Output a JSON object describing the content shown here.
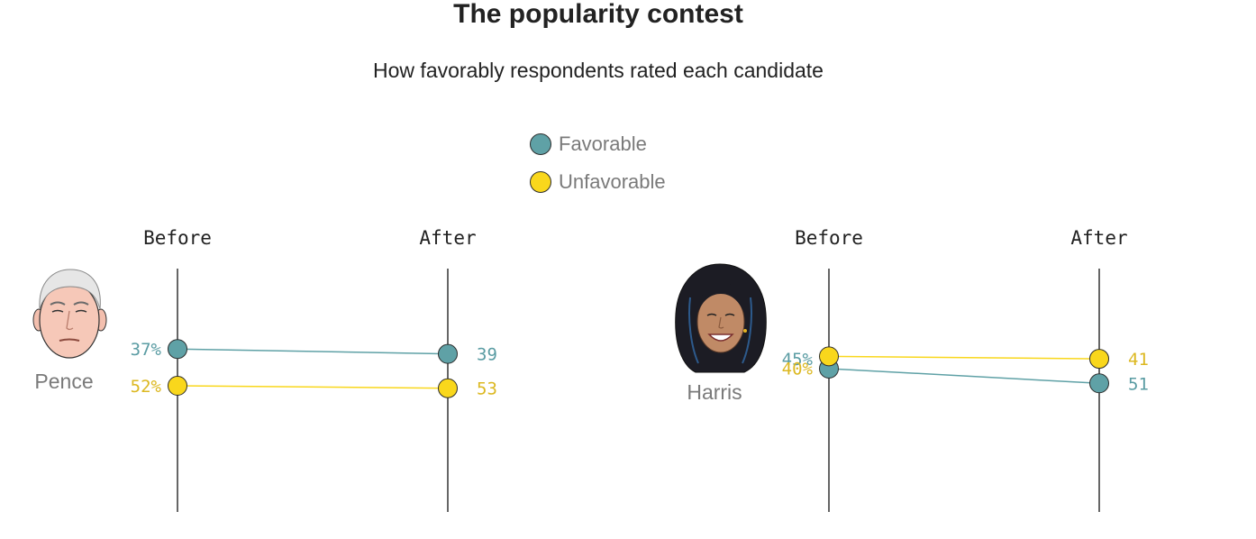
{
  "title": "The popularity contest",
  "subtitle": "How favorably respondents rated each candidate",
  "legend": [
    {
      "label": "Favorable",
      "color": "#5fa1a6"
    },
    {
      "label": "Unfavorable",
      "color": "#f9d71c"
    }
  ],
  "colors": {
    "favorable": "#5fa1a6",
    "unfavorable": "#f9d71c",
    "favorable_text": "#5a9ca3",
    "unfavorable_text": "#dcb821",
    "axis": "#333333"
  },
  "chart_data": [
    {
      "type": "slope",
      "candidate": "Pence",
      "portrait_icon": "pence-portrait-icon",
      "columns": [
        "Before",
        "After"
      ],
      "series": [
        {
          "name": "Unfavorable",
          "values": [
            52,
            53
          ],
          "labels": [
            "52%",
            "53"
          ]
        },
        {
          "name": "Favorable",
          "values": [
            37,
            39
          ],
          "labels": [
            "37%",
            "39"
          ]
        }
      ]
    },
    {
      "type": "slope",
      "candidate": "Harris",
      "portrait_icon": "harris-portrait-icon",
      "columns": [
        "Before",
        "After"
      ],
      "series": [
        {
          "name": "Favorable",
          "values": [
            45,
            51
          ],
          "labels": [
            "45%",
            "51"
          ]
        },
        {
          "name": "Unfavorable",
          "values": [
            40,
            41
          ],
          "labels": [
            "40%",
            "41"
          ]
        }
      ]
    }
  ]
}
